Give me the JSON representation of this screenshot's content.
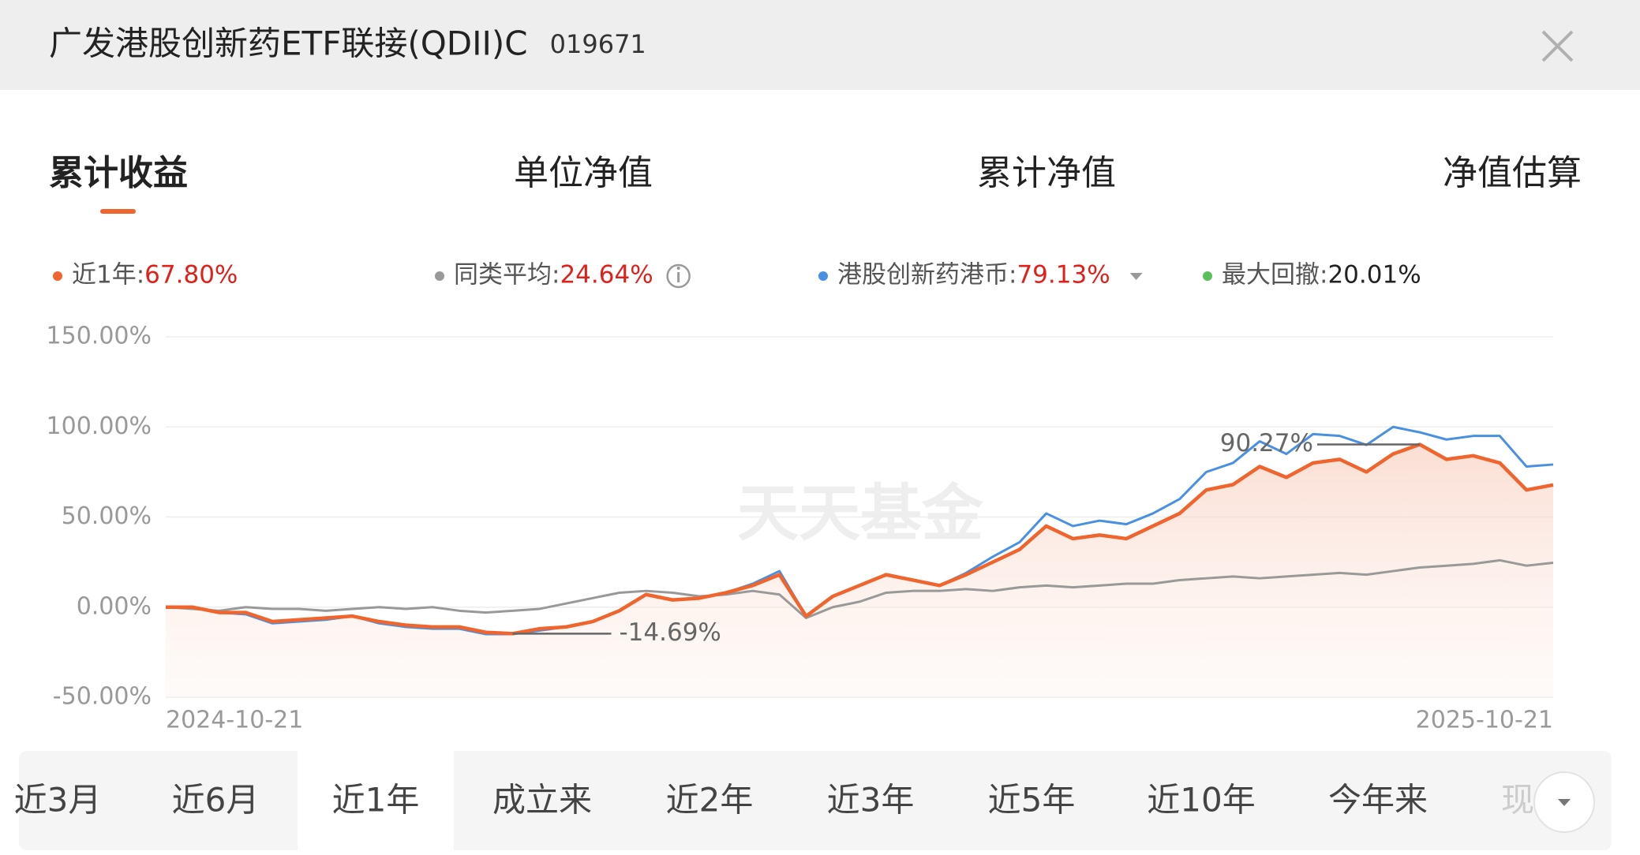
{
  "header": {
    "title": "广发港股创新药ETF联接(QDII)C",
    "code": "019671"
  },
  "tabs": [
    "累计收益",
    "单位净值",
    "累计净值",
    "净值估算"
  ],
  "chart_data": {
    "type": "line",
    "categories": [
      "2024-10-21",
      null,
      null,
      null,
      null,
      null,
      null,
      null,
      null,
      null,
      null,
      null,
      null,
      null,
      null,
      null,
      null,
      null,
      null,
      null,
      null,
      null,
      null,
      null,
      null,
      null,
      null,
      null,
      null,
      null,
      null,
      null,
      null,
      null,
      null,
      null,
      null,
      null,
      null,
      null,
      null,
      null,
      null,
      null,
      null,
      null,
      null,
      null,
      null,
      null,
      null,
      null,
      "2025-10-21"
    ],
    "series": [
      {
        "name": "近1年:",
        "summary": "67.80%",
        "color": "#f0642d",
        "values": [
          0,
          0,
          -3,
          -3,
          -8,
          -7,
          -6,
          -5,
          -8,
          -10,
          -11,
          -11,
          -14,
          -14.69,
          -12,
          -11,
          -8,
          -2,
          7,
          4,
          5,
          8,
          12,
          18,
          -5,
          6,
          12,
          18,
          15,
          12,
          18,
          25,
          32,
          45,
          38,
          40,
          38,
          45,
          52,
          65,
          68,
          78,
          72,
          80,
          82,
          75,
          85,
          90.27,
          82,
          84,
          80,
          65,
          67.8
        ]
      },
      {
        "name": "同类平均:",
        "summary": "24.64%",
        "color": "#999999",
        "values": [
          0,
          -1,
          -2,
          0,
          -1,
          -1,
          -2,
          -1,
          0,
          -1,
          0,
          -2,
          -3,
          -2,
          -1,
          2,
          5,
          8,
          9,
          8,
          6,
          7,
          9,
          7,
          -6,
          0,
          3,
          8,
          9,
          9,
          10,
          9,
          11,
          12,
          11,
          12,
          13,
          13,
          15,
          16,
          17,
          16,
          17,
          18,
          19,
          18,
          20,
          22,
          23,
          24,
          26,
          23,
          24.64
        ]
      },
      {
        "name": "港股创新药港币:",
        "summary": "79.13%",
        "color": "#4a90e2",
        "values": [
          0,
          0,
          -3,
          -4,
          -9,
          -8,
          -7,
          -5,
          -9,
          -11,
          -12,
          -12,
          -15,
          -15,
          -13,
          -11,
          -8,
          -2,
          7,
          4,
          5,
          8,
          13,
          20,
          -5,
          6,
          12,
          18,
          15,
          12,
          19,
          28,
          36,
          52,
          45,
          48,
          46,
          52,
          60,
          75,
          80,
          92,
          85,
          96,
          95,
          90,
          100,
          97,
          93,
          95,
          95,
          78,
          79.13
        ]
      }
    ],
    "drawdown": {
      "name": "最大回撤:",
      "value": 20.01,
      "label": "20.01%",
      "color": "#5ac05a"
    },
    "annotations": [
      {
        "value": 90.27,
        "label": "90.27%"
      },
      {
        "value": -14.69,
        "label": "-14.69%"
      }
    ],
    "ylim": [
      -50,
      150
    ],
    "yticks": [
      {
        "value": -50,
        "label": "-50.00%"
      },
      {
        "value": 0,
        "label": "0.00%"
      },
      {
        "value": 50,
        "label": "50.00%"
      },
      {
        "value": 100,
        "label": "100.00%"
      },
      {
        "value": 150,
        "label": "150.00%"
      }
    ],
    "grid": true,
    "watermark": "天天基金"
  },
  "periods": {
    "items": [
      "近3月",
      "近6月",
      "近1年",
      "成立来",
      "近2年",
      "近3年",
      "近5年",
      "近10年",
      "今年来",
      "现"
    ],
    "selected": "近1年"
  }
}
